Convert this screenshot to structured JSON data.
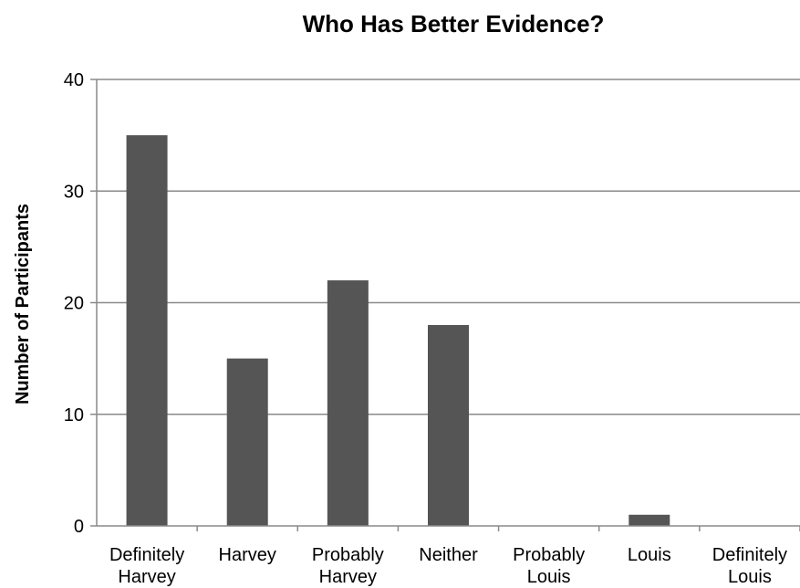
{
  "chart_data": {
    "type": "bar",
    "title": "Who Has Better Evidence?",
    "xlabel": "",
    "ylabel": "Number of Participants",
    "ylim": [
      0,
      40
    ],
    "yticks": [
      "0",
      "10",
      "20",
      "30",
      "40"
    ],
    "categories": [
      [
        "Definitely",
        "Harvey"
      ],
      [
        "Harvey"
      ],
      [
        "Probably",
        "Harvey"
      ],
      [
        "Neither"
      ],
      [
        "Probably",
        "Louis"
      ],
      [
        "Louis"
      ],
      [
        "Definitely",
        "Louis"
      ]
    ],
    "values": [
      35,
      15,
      22,
      18,
      0,
      1,
      0
    ],
    "grid": true,
    "bar_color": "#555555"
  }
}
